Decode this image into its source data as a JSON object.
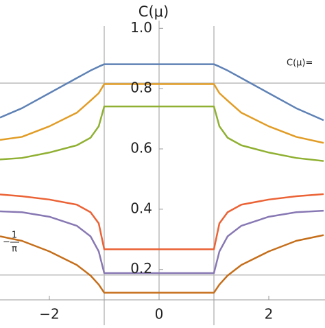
{
  "chart_data": {
    "type": "line",
    "y_label": "C(μ)",
    "x": [
      -2.9,
      -2.5,
      -2,
      -1.5,
      -1.25,
      -1.1,
      -1,
      1,
      1.1,
      1.25,
      1.5,
      2,
      2.5,
      3.0
    ],
    "xlim": [
      -2.9,
      3.025
    ],
    "ylim": [
      0.015,
      1.094
    ],
    "xticks": [
      {
        "value": -2,
        "label": "−2"
      },
      0,
      {
        "value": 2,
        "label": "2"
      }
    ],
    "yticks": [
      0.2,
      0.4,
      0.6,
      0.8,
      {
        "value": 1,
        "label": "1.0"
      }
    ],
    "hlines": [
      0.8183,
      0.1817
    ],
    "vlines": [
      -1,
      1
    ],
    "annotations": [
      "C(μ)=",
      "−",
      "1",
      "π"
    ],
    "series": [
      {
        "color": "#5e81b5",
        "values": [
          0.704,
          0.735,
          0.785,
          0.835,
          0.86,
          0.873,
          0.881,
          0.881,
          0.873,
          0.86,
          0.835,
          0.785,
          0.735,
          0.695
        ]
      },
      {
        "color": "#e19c24",
        "values": [
          0.63,
          0.64,
          0.675,
          0.72,
          0.76,
          0.785,
          0.815,
          0.815,
          0.785,
          0.76,
          0.72,
          0.675,
          0.64,
          0.62
        ]
      },
      {
        "color": "#8fb032",
        "values": [
          0.565,
          0.57,
          0.588,
          0.612,
          0.637,
          0.675,
          0.741,
          0.741,
          0.675,
          0.637,
          0.612,
          0.588,
          0.57,
          0.56
        ]
      },
      {
        "color": "#eb6235",
        "values": [
          0.449,
          0.443,
          0.432,
          0.415,
          0.39,
          0.353,
          0.267,
          0.267,
          0.353,
          0.39,
          0.415,
          0.432,
          0.443,
          0.45
        ]
      },
      {
        "color": "#8778b3",
        "values": [
          0.393,
          0.39,
          0.375,
          0.345,
          0.31,
          0.26,
          0.188,
          0.188,
          0.26,
          0.31,
          0.345,
          0.375,
          0.39,
          0.395
        ]
      },
      {
        "color": "#c56e1a",
        "values": [
          0.31,
          0.295,
          0.26,
          0.215,
          0.18,
          0.15,
          0.123,
          0.123,
          0.15,
          0.18,
          0.215,
          0.26,
          0.295,
          0.314
        ]
      }
    ]
  }
}
